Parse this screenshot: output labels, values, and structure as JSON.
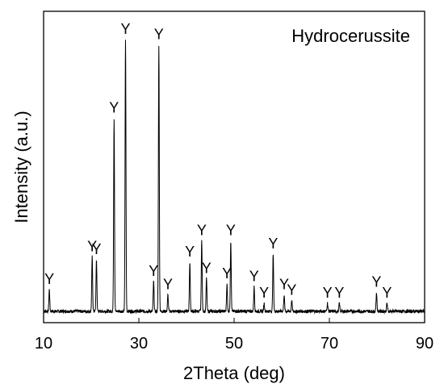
{
  "chart_data": {
    "type": "line",
    "legend_label": "Hydrocerussite",
    "legend_position": "top-right",
    "xlabel": "2Theta (deg)",
    "ylabel": "Intensity (a.u.)",
    "xlim": [
      10,
      90
    ],
    "ylim": [
      0,
      100
    ],
    "x_ticks": [
      10,
      30,
      50,
      70,
      90
    ],
    "x_tick_labels": [
      "10",
      "30",
      "50",
      "70",
      "90"
    ],
    "y_ticks_shown": false,
    "grid": false,
    "baseline": 3,
    "peaks": [
      {
        "x": 11.2,
        "h": 8,
        "label": "Y"
      },
      {
        "x": 20.2,
        "h": 20,
        "label": "Y"
      },
      {
        "x": 21.1,
        "h": 19,
        "label": "Y"
      },
      {
        "x": 24.8,
        "h": 71,
        "label": "Y"
      },
      {
        "x": 27.2,
        "h": 100,
        "label": "Y"
      },
      {
        "x": 33.1,
        "h": 11,
        "label": "Y"
      },
      {
        "x": 34.2,
        "h": 98,
        "label": "Y"
      },
      {
        "x": 36.1,
        "h": 6,
        "label": "Y"
      },
      {
        "x": 40.7,
        "h": 18,
        "label": "Y"
      },
      {
        "x": 43.2,
        "h": 26,
        "label": "Y"
      },
      {
        "x": 44.2,
        "h": 12,
        "label": "Y"
      },
      {
        "x": 48.5,
        "h": 10,
        "label": "Y"
      },
      {
        "x": 49.3,
        "h": 26,
        "label": "Y"
      },
      {
        "x": 54.2,
        "h": 9,
        "label": "Y"
      },
      {
        "x": 56.3,
        "h": 3,
        "label": "Y"
      },
      {
        "x": 58.2,
        "h": 21,
        "label": "Y"
      },
      {
        "x": 60.5,
        "h": 6,
        "label": "Y"
      },
      {
        "x": 62.1,
        "h": 4,
        "label": "Y"
      },
      {
        "x": 69.6,
        "h": 3,
        "label": "Y"
      },
      {
        "x": 72.1,
        "h": 3,
        "label": "Y"
      },
      {
        "x": 79.9,
        "h": 7,
        "label": "Y"
      },
      {
        "x": 82.1,
        "h": 3,
        "label": "Y"
      }
    ]
  }
}
